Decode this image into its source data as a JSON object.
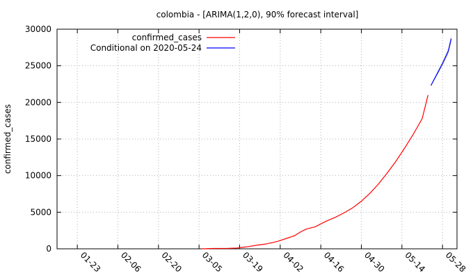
{
  "chart_data": {
    "type": "line",
    "title": "colombia -  [ARIMA(1,2,0), 90% forecast interval]",
    "xlabel": "",
    "ylabel": "confirmed_cases",
    "ylim": [
      0,
      30000
    ],
    "yticks": [
      0,
      5000,
      10000,
      15000,
      20000,
      25000,
      30000
    ],
    "xlim": [
      "2020-01-16",
      "2020-06-02"
    ],
    "xticks": [
      "01-23",
      "02-06",
      "02-20",
      "03-05",
      "03-19",
      "04-02",
      "04-16",
      "04-30",
      "05-14",
      "05-28"
    ],
    "xtick_dates": [
      "2020-01-23",
      "2020-02-06",
      "2020-02-20",
      "2020-03-05",
      "2020-03-19",
      "2020-04-02",
      "2020-04-16",
      "2020-04-30",
      "2020-05-14",
      "2020-05-28"
    ],
    "grid": true,
    "legend_position": "top-left",
    "series": [
      {
        "name": "confirmed_cases",
        "color": "#ff0000",
        "x": [
          "2020-03-06",
          "2020-03-10",
          "2020-03-15",
          "2020-03-18",
          "2020-03-20",
          "2020-03-22",
          "2020-03-25",
          "2020-03-28",
          "2020-04-01",
          "2020-04-04",
          "2020-04-07",
          "2020-04-09",
          "2020-04-11",
          "2020-04-14",
          "2020-04-16",
          "2020-04-18",
          "2020-04-21",
          "2020-04-24",
          "2020-04-27",
          "2020-04-30",
          "2020-05-03",
          "2020-05-06",
          "2020-05-09",
          "2020-05-12",
          "2020-05-15",
          "2020-05-18",
          "2020-05-21",
          "2020-05-23"
        ],
        "values": [
          0,
          50,
          60,
          100,
          200,
          300,
          500,
          650,
          1000,
          1400,
          1800,
          2300,
          2700,
          3000,
          3400,
          3800,
          4300,
          4900,
          5600,
          6500,
          7600,
          8900,
          10400,
          12000,
          13800,
          15700,
          17800,
          21000
        ]
      },
      {
        "name": "Conditional on 2020-05-24",
        "color": "#0000ff",
        "x": [
          "2020-05-24",
          "2020-05-26",
          "2020-05-28",
          "2020-05-30",
          "2020-05-31"
        ],
        "values": [
          22300,
          23800,
          25300,
          27000,
          28700
        ],
        "lower": [
          22200,
          23600,
          25000,
          26600,
          28200
        ],
        "upper": [
          22400,
          24000,
          25600,
          27400,
          29200
        ]
      }
    ]
  }
}
